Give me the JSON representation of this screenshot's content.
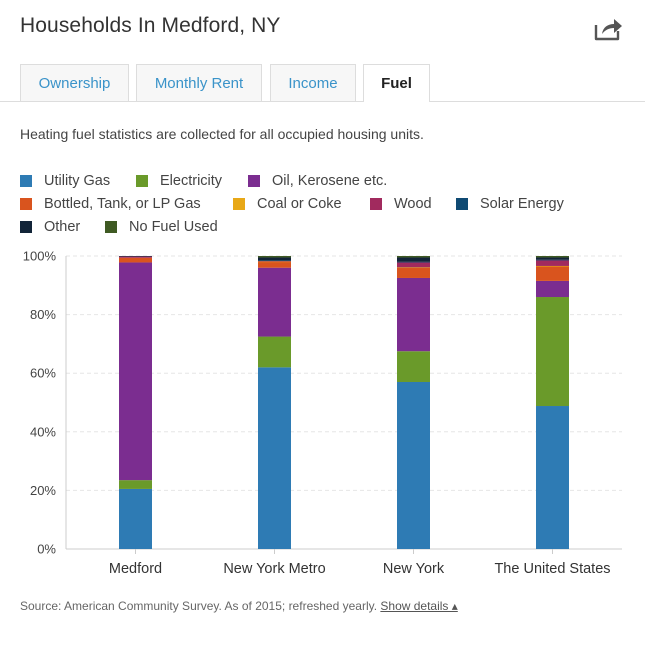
{
  "header": {
    "title": "Households In Medford, NY",
    "share_icon": "share-icon"
  },
  "tabs": [
    {
      "label": "Ownership",
      "active": false
    },
    {
      "label": "Monthly Rent",
      "active": false
    },
    {
      "label": "Income",
      "active": false
    },
    {
      "label": "Fuel",
      "active": true
    }
  ],
  "description": "Heating fuel statistics are collected for all occupied housing units.",
  "chart_data": {
    "type": "bar",
    "stacked": true,
    "categories": [
      "Medford",
      "New York Metro",
      "New York",
      "The United States"
    ],
    "ylim": [
      0,
      100
    ],
    "yticks": [
      0,
      20,
      40,
      60,
      80,
      100
    ],
    "ytick_labels": [
      "0%",
      "20%",
      "40%",
      "60%",
      "80%",
      "100%"
    ],
    "grid": true,
    "legend_position": "top",
    "series": [
      {
        "name": "Utility Gas",
        "color": "#2e7bb4",
        "values": [
          20.5,
          62.0,
          57.0,
          48.8
        ]
      },
      {
        "name": "Electricity",
        "color": "#6a9a2a",
        "values": [
          3.0,
          10.5,
          10.5,
          37.2
        ]
      },
      {
        "name": "Oil, Kerosene etc.",
        "color": "#7b2d90",
        "values": [
          74.3,
          23.5,
          25.0,
          5.5
        ]
      },
      {
        "name": "Bottled, Tank, or LP Gas",
        "color": "#d9541e",
        "values": [
          1.6,
          2.0,
          3.5,
          5.0
        ]
      },
      {
        "name": "Coal or Coke",
        "color": "#e8a817",
        "values": [
          0.0,
          0.1,
          0.1,
          0.1
        ]
      },
      {
        "name": "Wood",
        "color": "#a12a5e",
        "values": [
          0.4,
          0.3,
          1.8,
          2.0
        ]
      },
      {
        "name": "Solar Energy",
        "color": "#0f4a73",
        "values": [
          0.0,
          0.1,
          0.1,
          0.1
        ]
      },
      {
        "name": "Other",
        "color": "#122438",
        "values": [
          0.2,
          1.0,
          1.5,
          0.8
        ]
      },
      {
        "name": "No Fuel Used",
        "color": "#3f5a23",
        "values": [
          0.0,
          0.5,
          0.5,
          0.5
        ]
      }
    ]
  },
  "source": {
    "text": "Source: American Community Survey. As of 2015; refreshed yearly.",
    "link_label": "Show details ▴"
  }
}
